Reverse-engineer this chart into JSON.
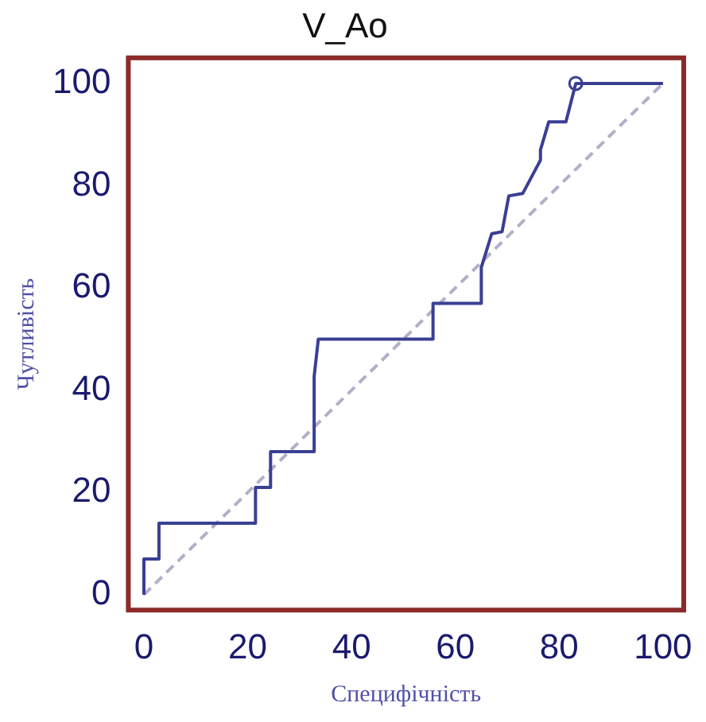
{
  "chart_data": {
    "type": "line",
    "title": "V_Ao",
    "xlabel": "Специфічність",
    "ylabel": "Чутливість",
    "xlim": [
      -3,
      104
    ],
    "ylim": [
      -3,
      105
    ],
    "xticks": [
      0,
      20,
      40,
      60,
      80,
      100
    ],
    "yticks": [
      0,
      20,
      40,
      60,
      80,
      100
    ],
    "grid": false,
    "legend": false,
    "marker": "none",
    "series": [
      {
        "color": "#3a3f94",
        "line_style": "solid",
        "x": [
          0,
          0,
          2.9,
          2.9,
          21.5,
          21.5,
          24.4,
          24.4,
          32.8,
          32.8,
          33.6,
          55.7,
          55.7,
          65,
          65,
          67,
          69,
          70.3,
          73,
          76.4,
          76.4,
          78,
          81.3,
          83.2,
          100
        ],
        "values": [
          0,
          7,
          7,
          14,
          14,
          21,
          21,
          28,
          28,
          42.7,
          50,
          50,
          57,
          57,
          64,
          70.6,
          71,
          78,
          78.5,
          85,
          87,
          92.5,
          92.5,
          100,
          100
        ]
      },
      {
        "color": "#b0b0c8",
        "line_style": "dashed",
        "x": [
          0,
          100
        ],
        "values": [
          0,
          100
        ]
      },
      {
        "type": "scatter",
        "color": "#3a3f94",
        "marker": "circle",
        "x": [
          83.2
        ],
        "values": [
          100
        ]
      }
    ]
  }
}
